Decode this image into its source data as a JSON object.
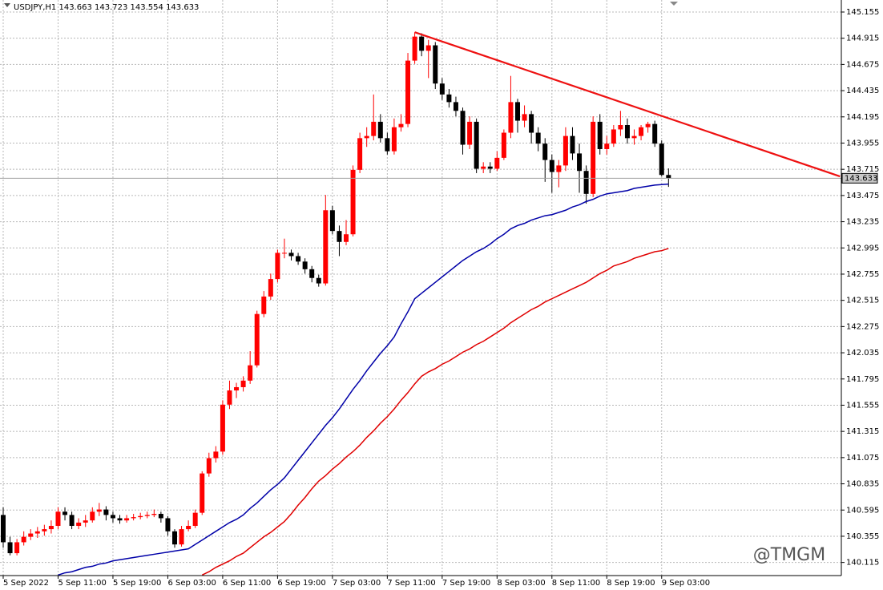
{
  "chart_data": {
    "type": "candlestick",
    "title": "USDJPY,H1  143.663 143.723 143.554 143.633",
    "watermark": "@TMGM",
    "categories": [
      "5 Sep 2022",
      null,
      null,
      null,
      null,
      null,
      null,
      null,
      "5 Sep 11:00",
      null,
      null,
      null,
      null,
      null,
      null,
      null,
      "5 Sep 19:00",
      null,
      null,
      null,
      null,
      null,
      null,
      null,
      "6 Sep 03:00",
      null,
      null,
      null,
      null,
      null,
      null,
      null,
      "6 Sep 11:00",
      null,
      null,
      null,
      null,
      null,
      null,
      null,
      "6 Sep 19:00",
      null,
      null,
      null,
      null,
      null,
      null,
      null,
      "7 Sep 03:00",
      null,
      null,
      null,
      null,
      null,
      null,
      null,
      "7 Sep 11:00",
      null,
      null,
      null,
      null,
      null,
      null,
      null,
      "7 Sep 19:00",
      null,
      null,
      null,
      null,
      null,
      null,
      null,
      "8 Sep 03:00",
      null,
      null,
      null,
      null,
      null,
      null,
      null,
      "8 Sep 11:00",
      null,
      null,
      null,
      null,
      null,
      null,
      null,
      "8 Sep 19:00",
      null,
      null,
      null,
      null,
      null,
      null,
      null,
      "9 Sep 03:00",
      null
    ],
    "ohlc": [
      [
        140.55,
        140.62,
        140.25,
        140.3
      ],
      [
        140.3,
        140.35,
        140.18,
        140.2
      ],
      [
        140.2,
        140.33,
        140.18,
        140.3
      ],
      [
        140.3,
        140.4,
        140.27,
        140.35
      ],
      [
        140.35,
        140.42,
        140.32,
        140.38
      ],
      [
        140.38,
        140.44,
        140.34,
        140.4
      ],
      [
        140.4,
        140.46,
        140.36,
        140.42
      ],
      [
        140.42,
        140.5,
        140.38,
        140.45
      ],
      [
        140.45,
        140.62,
        140.42,
        140.58
      ],
      [
        140.58,
        140.62,
        140.5,
        140.55
      ],
      [
        140.55,
        140.58,
        140.42,
        140.45
      ],
      [
        140.45,
        140.52,
        140.42,
        140.48
      ],
      [
        140.48,
        140.55,
        140.44,
        140.5
      ],
      [
        140.5,
        140.62,
        140.48,
        140.58
      ],
      [
        140.58,
        140.66,
        140.54,
        140.6
      ],
      [
        140.6,
        140.63,
        140.5,
        140.55
      ],
      [
        140.55,
        140.58,
        140.48,
        140.52
      ],
      [
        140.52,
        140.55,
        140.47,
        140.5
      ],
      [
        140.5,
        140.55,
        140.48,
        140.52
      ],
      [
        140.52,
        140.56,
        140.5,
        140.53
      ],
      [
        140.53,
        140.57,
        140.51,
        140.54
      ],
      [
        140.54,
        140.58,
        140.52,
        140.55
      ],
      [
        140.55,
        140.6,
        140.53,
        140.56
      ],
      [
        140.56,
        140.58,
        140.48,
        140.52
      ],
      [
        140.52,
        140.54,
        140.36,
        140.4
      ],
      [
        140.4,
        140.42,
        140.25,
        140.28
      ],
      [
        140.28,
        140.45,
        140.26,
        140.42
      ],
      [
        140.42,
        140.5,
        140.4,
        140.45
      ],
      [
        140.45,
        140.6,
        140.43,
        140.57
      ],
      [
        140.57,
        140.95,
        140.55,
        140.93
      ],
      [
        140.93,
        141.12,
        140.9,
        141.07
      ],
      [
        141.07,
        141.18,
        141.03,
        141.13
      ],
      [
        141.13,
        141.6,
        141.1,
        141.56
      ],
      [
        141.56,
        141.78,
        141.52,
        141.69
      ],
      [
        141.69,
        141.76,
        141.62,
        141.72
      ],
      [
        141.72,
        141.82,
        141.68,
        141.78
      ],
      [
        141.78,
        142.05,
        141.75,
        141.92
      ],
      [
        141.92,
        142.42,
        141.9,
        142.39
      ],
      [
        142.39,
        142.6,
        142.36,
        142.55
      ],
      [
        142.55,
        142.76,
        142.52,
        142.71
      ],
      [
        142.71,
        142.98,
        142.68,
        142.95
      ],
      [
        142.95,
        143.08,
        142.9,
        142.95
      ],
      [
        142.95,
        142.98,
        142.88,
        142.92
      ],
      [
        142.92,
        142.95,
        142.84,
        142.87
      ],
      [
        142.87,
        142.9,
        142.76,
        142.8
      ],
      [
        142.8,
        142.83,
        142.68,
        142.72
      ],
      [
        142.72,
        142.75,
        142.64,
        142.67
      ],
      [
        142.67,
        143.48,
        142.65,
        143.34
      ],
      [
        143.34,
        143.38,
        143.12,
        143.15
      ],
      [
        143.15,
        143.2,
        142.92,
        143.05
      ],
      [
        143.05,
        143.25,
        143.02,
        143.12
      ],
      [
        143.12,
        143.75,
        143.1,
        143.71
      ],
      [
        143.71,
        144.05,
        143.68,
        144.0
      ],
      [
        144.0,
        144.1,
        143.92,
        144.02
      ],
      [
        144.02,
        144.4,
        143.98,
        144.15
      ],
      [
        144.15,
        144.22,
        143.96,
        144.0
      ],
      [
        144.0,
        144.05,
        143.85,
        143.88
      ],
      [
        143.88,
        144.18,
        143.85,
        144.1
      ],
      [
        144.1,
        144.22,
        144.06,
        144.13
      ],
      [
        144.13,
        144.78,
        144.1,
        144.71
      ],
      [
        144.71,
        144.97,
        144.68,
        144.93
      ],
      [
        144.93,
        144.96,
        144.75,
        144.8
      ],
      [
        144.8,
        144.9,
        144.55,
        144.85
      ],
      [
        144.85,
        144.88,
        144.45,
        144.5
      ],
      [
        144.5,
        144.55,
        144.35,
        144.4
      ],
      [
        144.4,
        144.45,
        144.28,
        144.33
      ],
      [
        144.33,
        144.38,
        144.2,
        144.25
      ],
      [
        144.25,
        144.28,
        143.85,
        143.94
      ],
      [
        143.94,
        144.2,
        143.9,
        144.15
      ],
      [
        144.15,
        144.18,
        143.68,
        143.72
      ],
      [
        143.72,
        143.78,
        143.68,
        143.74
      ],
      [
        143.74,
        143.78,
        143.68,
        143.72
      ],
      [
        143.72,
        143.88,
        143.7,
        143.82
      ],
      [
        143.82,
        144.08,
        143.8,
        144.05
      ],
      [
        144.05,
        144.57,
        144.0,
        144.33
      ],
      [
        144.33,
        144.36,
        144.05,
        144.16
      ],
      [
        144.16,
        144.3,
        144.1,
        144.22
      ],
      [
        144.22,
        144.25,
        143.95,
        144.05
      ],
      [
        144.05,
        144.1,
        143.88,
        143.95
      ],
      [
        143.95,
        144.0,
        143.6,
        143.8
      ],
      [
        143.8,
        143.85,
        143.5,
        143.69
      ],
      [
        143.69,
        143.8,
        143.55,
        143.75
      ],
      [
        143.75,
        144.1,
        143.7,
        144.02
      ],
      [
        144.02,
        144.1,
        143.8,
        143.86
      ],
      [
        143.86,
        143.95,
        143.5,
        143.7
      ],
      [
        143.7,
        143.75,
        143.4,
        143.49
      ],
      [
        143.49,
        144.2,
        143.46,
        144.15
      ],
      [
        144.15,
        144.22,
        143.85,
        143.9
      ],
      [
        143.9,
        144.02,
        143.85,
        143.95
      ],
      [
        143.95,
        144.12,
        143.92,
        144.08
      ],
      [
        144.08,
        144.25,
        144.02,
        144.12
      ],
      [
        144.12,
        144.18,
        143.95,
        144.0
      ],
      [
        144.0,
        144.08,
        143.94,
        144.02
      ],
      [
        144.02,
        144.12,
        143.98,
        144.1
      ],
      [
        144.1,
        144.15,
        144.05,
        144.13
      ],
      [
        144.13,
        144.16,
        143.92,
        143.95
      ],
      [
        143.95,
        143.98,
        143.65,
        143.663
      ],
      [
        143.663,
        143.723,
        143.554,
        143.633
      ]
    ],
    "up_color": "#ff0000",
    "down_color": "#000000",
    "series": [
      {
        "color": "#0000a8",
        "values": [
          null,
          null,
          null,
          null,
          null,
          null,
          null,
          null,
          140.0,
          140.02,
          140.03,
          140.05,
          140.07,
          140.08,
          140.1,
          140.11,
          140.13,
          140.14,
          140.15,
          140.16,
          140.17,
          140.18,
          140.19,
          140.2,
          140.21,
          140.22,
          140.23,
          140.24,
          140.28,
          140.32,
          140.36,
          140.4,
          140.44,
          140.48,
          140.51,
          140.55,
          140.61,
          140.66,
          140.72,
          140.78,
          140.83,
          140.89,
          140.97,
          141.05,
          141.13,
          141.21,
          141.29,
          141.37,
          141.44,
          141.52,
          141.61,
          141.7,
          141.78,
          141.87,
          141.95,
          142.03,
          142.1,
          142.18,
          142.3,
          142.41,
          142.53,
          142.58,
          142.63,
          142.68,
          142.73,
          142.78,
          142.83,
          142.88,
          142.92,
          142.96,
          142.99,
          143.03,
          143.08,
          143.12,
          143.17,
          143.2,
          143.22,
          143.25,
          143.27,
          143.29,
          143.3,
          143.32,
          143.34,
          143.37,
          143.39,
          143.42,
          143.44,
          143.47,
          143.49,
          143.5,
          143.51,
          143.52,
          143.54,
          143.55,
          143.56,
          143.57,
          143.575,
          143.58
        ]
      },
      {
        "color": "#e00000",
        "values": [
          null,
          null,
          null,
          null,
          null,
          null,
          null,
          null,
          null,
          null,
          null,
          null,
          null,
          null,
          null,
          null,
          null,
          null,
          null,
          null,
          null,
          null,
          null,
          null,
          null,
          null,
          null,
          null,
          null,
          140.0,
          140.03,
          140.07,
          140.1,
          140.13,
          140.17,
          140.2,
          140.25,
          140.3,
          140.35,
          140.39,
          140.44,
          140.49,
          140.56,
          140.64,
          140.71,
          140.79,
          140.86,
          140.91,
          140.97,
          141.02,
          141.08,
          141.13,
          141.19,
          141.26,
          141.32,
          141.39,
          141.45,
          141.52,
          141.6,
          141.67,
          141.75,
          141.82,
          141.86,
          141.89,
          141.93,
          141.96,
          142.0,
          142.04,
          142.07,
          142.11,
          142.14,
          142.18,
          142.22,
          142.26,
          142.31,
          142.35,
          142.39,
          142.43,
          142.46,
          142.5,
          142.53,
          142.56,
          142.59,
          142.62,
          142.65,
          142.68,
          142.72,
          142.76,
          142.79,
          142.83,
          142.85,
          142.87,
          142.9,
          142.92,
          142.94,
          142.96,
          142.97,
          142.99
        ]
      }
    ],
    "trendline": {
      "color": "#ee1111",
      "x": [
        60,
        122
      ],
      "values": [
        144.97,
        143.65
      ]
    },
    "current_price": 143.633,
    "ylim": [
      139.995,
      145.265
    ],
    "yticks": [
      145.155,
      144.915,
      144.675,
      144.435,
      144.195,
      143.955,
      143.715,
      143.475,
      143.235,
      142.995,
      142.755,
      142.515,
      142.275,
      142.035,
      141.795,
      141.555,
      141.315,
      141.075,
      140.835,
      140.595,
      140.355,
      140.115
    ],
    "grid": true
  }
}
